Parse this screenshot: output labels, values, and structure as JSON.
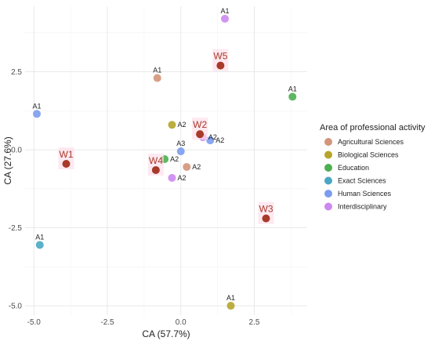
{
  "chart_data": {
    "type": "scatter",
    "xlabel": "CA (57.7%)",
    "ylabel": "CA (27.6%)",
    "xlim": [
      -5.3,
      4.3
    ],
    "ylim": [
      -5.3,
      4.6
    ],
    "x_ticks": [
      {
        "value": -5.0,
        "label": "-5.0"
      },
      {
        "value": -2.5,
        "label": "-2.5"
      },
      {
        "value": 0.0,
        "label": "0.0"
      },
      {
        "value": 2.5,
        "label": "2.5"
      }
    ],
    "y_ticks": [
      {
        "value": 2.5,
        "label": "2.5"
      },
      {
        "value": 0.0,
        "label": "0.0"
      },
      {
        "value": -2.5,
        "label": "-2.5"
      },
      {
        "value": -5.0,
        "label": "-5.0"
      }
    ],
    "grid": true,
    "legend": {
      "title": "Area of professional activity",
      "position": "right",
      "items": [
        {
          "label": "Agricultural Sciences",
          "color": "#d4957a"
        },
        {
          "label": "Biological Sciences",
          "color": "#b5a52a"
        },
        {
          "label": "Education",
          "color": "#4caf50"
        },
        {
          "label": "Exact Sciences",
          "color": "#4aa7c4"
        },
        {
          "label": "Human Sciences",
          "color": "#7b9cf0"
        },
        {
          "label": "Interdisciplinary",
          "color": "#cc88ee"
        }
      ]
    },
    "points": [
      {
        "label": "A1",
        "x": 1.5,
        "y": 4.2,
        "group": "Interdisciplinary"
      },
      {
        "label": "A1",
        "x": -0.8,
        "y": 2.3,
        "group": "Agricultural Sciences"
      },
      {
        "label": "A1",
        "x": 3.8,
        "y": 1.7,
        "group": "Education"
      },
      {
        "label": "A1",
        "x": -4.9,
        "y": 1.15,
        "group": "Human Sciences"
      },
      {
        "label": "A1",
        "x": -4.8,
        "y": -3.05,
        "group": "Exact Sciences"
      },
      {
        "label": "A1",
        "x": 1.7,
        "y": -5.0,
        "group": "Biological Sciences"
      },
      {
        "label": "A2",
        "x": -0.3,
        "y": 0.8,
        "group": "Biological Sciences"
      },
      {
        "label": "A2",
        "x": 0.75,
        "y": 0.4,
        "group": "Interdisciplinary"
      },
      {
        "label": "A2",
        "x": 1.0,
        "y": 0.3,
        "group": "Human Sciences"
      },
      {
        "label": "A2",
        "x": -0.55,
        "y": -0.3,
        "group": "Education"
      },
      {
        "label": "A2",
        "x": 0.2,
        "y": -0.55,
        "group": "Agricultural Sciences"
      },
      {
        "label": "A2",
        "x": -0.3,
        "y": -0.9,
        "group": "Interdisciplinary"
      },
      {
        "label": "A3",
        "x": 0.0,
        "y": -0.05,
        "group": "Human Sciences"
      }
    ],
    "wave_points": [
      {
        "label": "W1",
        "x": -3.9,
        "y": -0.45
      },
      {
        "label": "W2",
        "x": 0.65,
        "y": 0.5
      },
      {
        "label": "W3",
        "x": 2.9,
        "y": -2.2
      },
      {
        "label": "W4",
        "x": -0.85,
        "y": -0.65
      },
      {
        "label": "W5",
        "x": 1.35,
        "y": 2.7
      }
    ],
    "wave_color": "#a83a2a"
  }
}
